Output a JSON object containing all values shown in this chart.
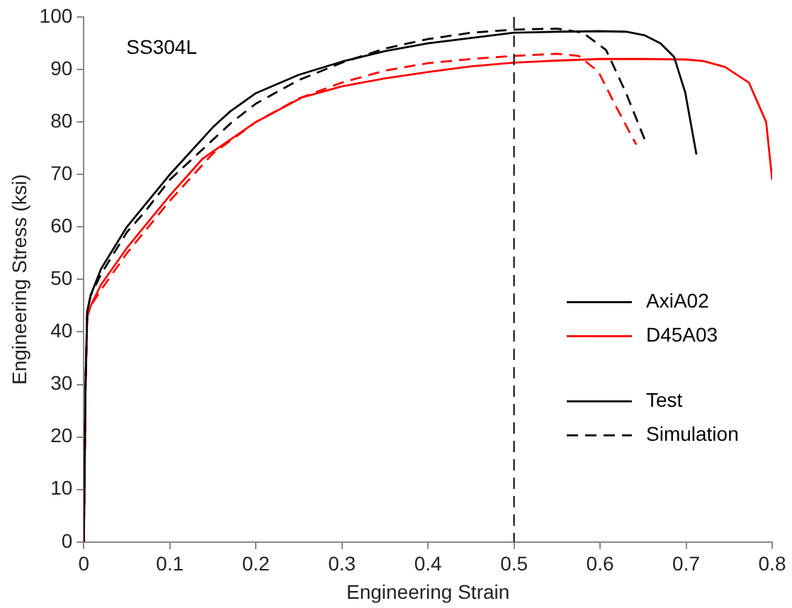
{
  "chart_data": {
    "type": "line",
    "xlabel": "Engineering Strain",
    "ylabel": "Engineering Stress (ksi)",
    "xlim": [
      0,
      0.8
    ],
    "xticks": [
      0,
      0.1,
      0.2,
      0.3,
      0.4,
      0.5,
      0.6,
      0.7,
      0.8
    ],
    "ylim": [
      0,
      100
    ],
    "yticks": [
      0,
      10,
      20,
      30,
      40,
      50,
      60,
      70,
      80,
      90,
      100
    ],
    "grid": false,
    "legend": "right",
    "marker": "none",
    "annotations": [
      "SS304L",
      "Test",
      "Simulation"
    ],
    "ref_lines": [
      {
        "axis": "x",
        "value": 0.5,
        "label": null,
        "color": "#000000",
        "line_style": "dashed"
      }
    ],
    "series": [
      {
        "name": "AxiA02",
        "color": "#000000",
        "line_style": "solid",
        "x": [
          0,
          0.002,
          0.004,
          0.008,
          0.02,
          0.05,
          0.07,
          0.1,
          0.15,
          0.17,
          0.2,
          0.25,
          0.3,
          0.35,
          0.4,
          0.45,
          0.5,
          0.55,
          0.6,
          0.63,
          0.652,
          0.67,
          0.686,
          0.699,
          0.712
        ],
        "values": [
          0,
          30,
          44,
          47,
          52,
          60,
          64,
          70,
          79,
          82,
          85.5,
          89,
          91.5,
          93.5,
          95,
          96,
          97,
          97.2,
          97.3,
          97.2,
          96.5,
          95,
          92.4,
          85.6,
          73.8
        ]
      },
      {
        "name": "D45A03",
        "color": "#ff0000",
        "line_style": "solid",
        "x": [
          0,
          0.002,
          0.004,
          0.008,
          0.02,
          0.05,
          0.1,
          0.138,
          0.2,
          0.254,
          0.3,
          0.35,
          0.403,
          0.45,
          0.5,
          0.55,
          0.6,
          0.65,
          0.7,
          0.72,
          0.745,
          0.773,
          0.793,
          0.8
        ],
        "values": [
          0,
          30,
          43,
          45,
          49,
          56,
          66,
          73,
          80,
          84.7,
          86.8,
          88.3,
          89.6,
          90.6,
          91.3,
          91.7,
          92,
          92,
          91.9,
          91.6,
          90.5,
          87.5,
          80,
          69
        ]
      },
      {
        "name": null,
        "color": "#000000",
        "line_style": "dashed",
        "x": [
          0,
          0.002,
          0.004,
          0.008,
          0.02,
          0.05,
          0.071,
          0.1,
          0.171,
          0.2,
          0.25,
          0.3,
          0.35,
          0.4,
          0.45,
          0.5,
          0.55,
          0.58,
          0.607,
          0.63,
          0.652
        ],
        "values": [
          0,
          30,
          44,
          47,
          51,
          59,
          62.9,
          69,
          79.8,
          83.5,
          88,
          91.3,
          94,
          95.8,
          97,
          97.6,
          97.8,
          97,
          93.7,
          85.6,
          76.6
        ]
      },
      {
        "name": null,
        "color": "#ff0000",
        "line_style": "dashed",
        "x": [
          0,
          0.002,
          0.004,
          0.008,
          0.02,
          0.05,
          0.1,
          0.15,
          0.2,
          0.25,
          0.3,
          0.35,
          0.4,
          0.45,
          0.5,
          0.55,
          0.575,
          0.598,
          0.619,
          0.642
        ],
        "values": [
          0,
          30,
          43,
          45,
          48,
          55,
          65,
          74,
          80,
          84.5,
          87.5,
          89.8,
          91.2,
          92,
          92.6,
          93,
          92.6,
          89.6,
          82.8,
          75.7
        ]
      }
    ]
  }
}
